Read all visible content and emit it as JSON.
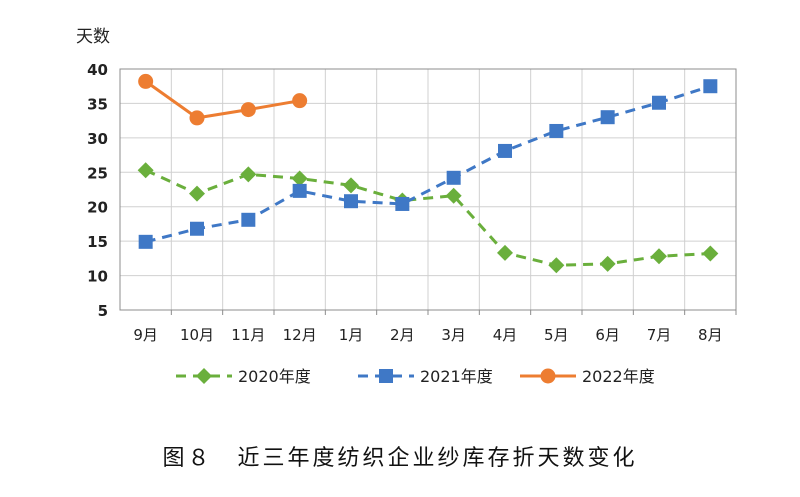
{
  "chart_data": {
    "type": "line",
    "y_unit_label": "天数",
    "categories": [
      "9月",
      "10月",
      "11月",
      "12月",
      "1月",
      "2月",
      "3月",
      "4月",
      "5月",
      "6月",
      "7月",
      "8月"
    ],
    "ylim": [
      5,
      40
    ],
    "yticks": [
      5,
      10,
      15,
      20,
      25,
      30,
      35,
      40
    ],
    "grid": true,
    "legend_position": "bottom",
    "series": [
      {
        "name": "2020年度",
        "values": [
          25.3,
          21.9,
          24.7,
          24.1,
          23.1,
          20.9,
          21.6,
          13.3,
          11.5,
          11.7,
          12.8,
          13.2
        ],
        "color": "#6aaf3c",
        "dash": "dashed",
        "marker": "diamond"
      },
      {
        "name": "2021年度",
        "values": [
          14.9,
          16.8,
          18.1,
          22.3,
          20.8,
          20.4,
          24.2,
          28.1,
          31.0,
          33.0,
          35.1,
          37.5
        ],
        "color": "#3f78c6",
        "dash": "dashed",
        "marker": "square"
      },
      {
        "name": "2022年度",
        "values": [
          38.2,
          32.9,
          34.1,
          35.4,
          null,
          null,
          null,
          null,
          null,
          null,
          null,
          null
        ],
        "color": "#ed7d31",
        "dash": "solid",
        "marker": "circle"
      }
    ]
  },
  "caption": "图８　近三年度纺织企业纱库存折天数变化"
}
